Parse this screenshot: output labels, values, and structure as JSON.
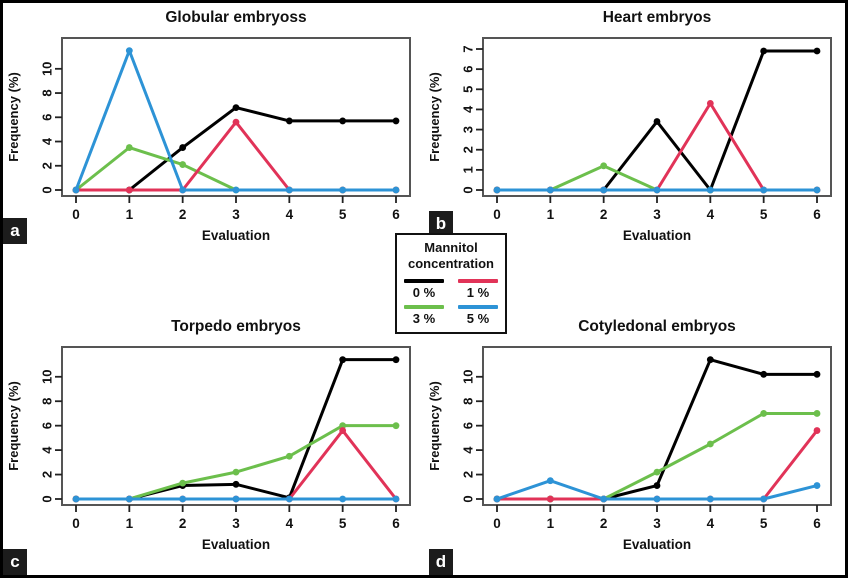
{
  "figure": {
    "background": "#ffffff",
    "border_color": "#000000",
    "axis_color": "#555555",
    "text_color": "#111111"
  },
  "legend": {
    "title_line1": "Mannitol",
    "title_line2": "concentration",
    "entries": [
      {
        "label": "0 %",
        "color": "#000000"
      },
      {
        "label": "1 %",
        "color": "#E13358"
      },
      {
        "label": "3 %",
        "color": "#6CBF4C"
      },
      {
        "label": "5 %",
        "color": "#2D93D6"
      }
    ]
  },
  "chart_data": [
    {
      "type": "line",
      "panel_letter": "a",
      "title": "Globular embryoss",
      "xlabel": "Evaluation",
      "ylabel": "Frequency (%)",
      "x": [
        0,
        1,
        2,
        3,
        4,
        5,
        6
      ],
      "xticks": [
        0,
        1,
        2,
        3,
        4,
        5,
        6
      ],
      "yticks": [
        0,
        2,
        4,
        6,
        8,
        10
      ],
      "ylim": [
        0,
        11.8
      ],
      "grid": false,
      "series": [
        {
          "name": "0 %",
          "color": "#000000",
          "z": 1,
          "values": [
            0,
            0,
            3.5,
            6.8,
            5.7,
            5.7,
            5.7
          ]
        },
        {
          "name": "1 %",
          "color": "#E13358",
          "z": 3,
          "values": [
            0,
            0,
            0,
            5.6,
            0,
            0,
            0
          ]
        },
        {
          "name": "3 %",
          "color": "#6CBF4C",
          "z": 2,
          "values": [
            0,
            3.5,
            2.1,
            0,
            0,
            0,
            0
          ]
        },
        {
          "name": "5 %",
          "color": "#2D93D6",
          "z": 4,
          "values": [
            0,
            11.5,
            0,
            0,
            0,
            0,
            0
          ]
        }
      ]
    },
    {
      "type": "line",
      "panel_letter": "b",
      "title": "Heart embryos",
      "xlabel": "Evaluation",
      "ylabel": "Frequency (%)",
      "x": [
        0,
        1,
        2,
        3,
        4,
        5,
        6
      ],
      "xticks": [
        0,
        1,
        2,
        3,
        4,
        5,
        6
      ],
      "yticks": [
        0,
        1,
        2,
        3,
        4,
        5,
        6,
        7
      ],
      "ylim": [
        0,
        7.1
      ],
      "grid": false,
      "series": [
        {
          "name": "0 %",
          "color": "#000000",
          "z": 1,
          "values": [
            0,
            0,
            0,
            3.4,
            0,
            6.9,
            6.9
          ]
        },
        {
          "name": "1 %",
          "color": "#E13358",
          "z": 3,
          "values": [
            0,
            0,
            0,
            0,
            4.3,
            0,
            0
          ]
        },
        {
          "name": "3 %",
          "color": "#6CBF4C",
          "z": 2,
          "values": [
            0,
            0,
            1.2,
            0,
            0,
            0,
            0
          ]
        },
        {
          "name": "5 %",
          "color": "#2D93D6",
          "z": 4,
          "values": [
            0,
            0,
            0,
            0,
            0,
            0,
            0
          ]
        }
      ]
    },
    {
      "type": "line",
      "panel_letter": "c",
      "title": "Torpedo embryos",
      "xlabel": "Evaluation",
      "ylabel": "Frequency (%)",
      "x": [
        0,
        1,
        2,
        3,
        4,
        5,
        6
      ],
      "xticks": [
        0,
        1,
        2,
        3,
        4,
        5,
        6
      ],
      "yticks": [
        0,
        2,
        4,
        6,
        8,
        10
      ],
      "ylim": [
        0,
        11.7
      ],
      "grid": false,
      "series": [
        {
          "name": "0 %",
          "color": "#000000",
          "z": 1,
          "values": [
            0,
            0,
            1.1,
            1.2,
            0.1,
            11.4,
            11.4
          ]
        },
        {
          "name": "1 %",
          "color": "#E13358",
          "z": 3,
          "values": [
            0,
            0,
            0,
            0,
            0,
            5.6,
            0
          ]
        },
        {
          "name": "3 %",
          "color": "#6CBF4C",
          "z": 2,
          "values": [
            0,
            0,
            1.3,
            2.2,
            3.5,
            6,
            6
          ]
        },
        {
          "name": "5 %",
          "color": "#2D93D6",
          "z": 4,
          "values": [
            0,
            0,
            0,
            0,
            0,
            0,
            0
          ]
        }
      ]
    },
    {
      "type": "line",
      "panel_letter": "d",
      "title": "Cotyledonal embryos",
      "xlabel": "Evaluation",
      "ylabel": "Frequency (%)",
      "x": [
        0,
        1,
        2,
        3,
        4,
        5,
        6
      ],
      "xticks": [
        0,
        1,
        2,
        3,
        4,
        5,
        6
      ],
      "yticks": [
        0,
        2,
        4,
        6,
        8,
        10
      ],
      "ylim": [
        0,
        11.7
      ],
      "grid": false,
      "series": [
        {
          "name": "0 %",
          "color": "#000000",
          "z": 1,
          "values": [
            0,
            0,
            0,
            1.1,
            11.4,
            10.2,
            10.2
          ]
        },
        {
          "name": "1 %",
          "color": "#E13358",
          "z": 3,
          "values": [
            0,
            0,
            0,
            0,
            0,
            0,
            5.6
          ]
        },
        {
          "name": "3 %",
          "color": "#6CBF4C",
          "z": 2,
          "values": [
            0,
            0,
            0,
            2.2,
            4.5,
            7,
            7
          ]
        },
        {
          "name": "5 %",
          "color": "#2D93D6",
          "z": 4,
          "values": [
            0,
            1.5,
            0,
            0,
            0,
            0,
            1.1
          ]
        }
      ]
    }
  ]
}
